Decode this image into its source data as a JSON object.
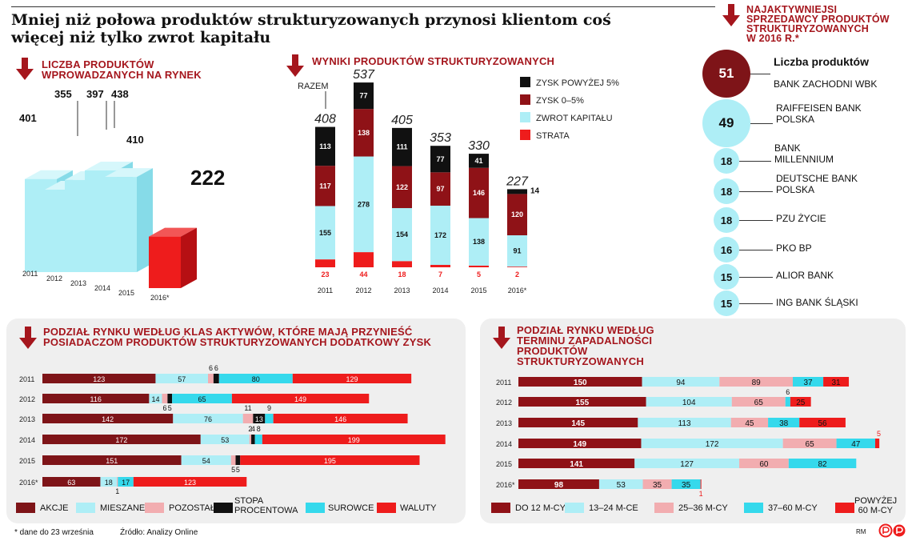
{
  "title": "Mniej niż połowa produktów strukturyzowanych przynosi klientom coś więcej niż tylko zwrot kapitału",
  "colors": {
    "akcje": "#7e1418",
    "mieszane": "#aeeef6",
    "pozostale": "#f2adb0",
    "stopa": "#111111",
    "surowce": "#35d9ec",
    "waluty": "#ee1c1c",
    "do12": "#8f1217",
    "m13_24": "#aeeef6",
    "m25_36": "#f2adb0",
    "m37_60": "#35d9ec",
    "pow60": "#ee1c1c",
    "zysk5": "#111111",
    "zysk05": "#8f1217",
    "zwrot": "#aeeef6",
    "strata": "#ee1c1c",
    "accent": "#a5161d"
  },
  "chart_data": [
    {
      "type": "bar",
      "id": "liczba",
      "title": "LICZBA PRODUKTÓW WPROWADZANYCH NA RYNEK",
      "categories": [
        "2011",
        "2012",
        "2013",
        "2014",
        "2015",
        "2016*"
      ],
      "values": [
        401,
        355,
        397,
        438,
        410,
        222
      ],
      "labels": [
        "401",
        "355",
        "397",
        "438",
        "410",
        "222"
      ]
    },
    {
      "type": "bar",
      "id": "wyniki",
      "title": "WYNIKI PRODUKTÓW STRUKTURYZOWANYCH",
      "annotation": "RAZEM",
      "categories": [
        "2011",
        "2012",
        "2013",
        "2014",
        "2015",
        "2016*"
      ],
      "totals": [
        "408",
        "537",
        "405",
        "353",
        "330",
        "227"
      ],
      "series": [
        {
          "name": "STRATA",
          "values": [
            23,
            44,
            18,
            7,
            5,
            2
          ]
        },
        {
          "name": "ZWROT KAPITAŁU",
          "values": [
            155,
            278,
            154,
            172,
            138,
            91
          ]
        },
        {
          "name": "ZYSK 0–5%",
          "values": [
            117,
            138,
            122,
            97,
            146,
            120
          ]
        },
        {
          "name": "ZYSK POWYŻEJ 5%",
          "values": [
            113,
            77,
            111,
            77,
            41,
            14
          ]
        }
      ],
      "legend": [
        "ZYSK POWYŻEJ 5%",
        "ZYSK 0–5%",
        "ZWROT KAPITAŁU",
        "STRATA"
      ]
    },
    {
      "type": "bar",
      "id": "klasy",
      "title": "PODZIAŁ RYNKU WEDŁUG KLAS AKTYWÓW, KTÓRE MAJĄ PRZYNIEŚĆ POSIADACZOM PRODUKTÓW STRUKTURYZOWANYCH DODATKOWY ZYSK",
      "categories": [
        "2011",
        "2012",
        "2013",
        "2014",
        "2015",
        "2016*"
      ],
      "series": [
        {
          "name": "AKCJE",
          "values": [
            123,
            116,
            142,
            172,
            151,
            63
          ]
        },
        {
          "name": "MIESZANE",
          "values": [
            57,
            14,
            76,
            53,
            54,
            18
          ]
        },
        {
          "name": "POZOSTAŁE",
          "values": [
            6,
            6,
            11,
            2,
            5,
            1
          ]
        },
        {
          "name": "STOPA PROCENTOWA",
          "values": [
            6,
            5,
            13,
            4,
            5,
            0
          ]
        },
        {
          "name": "SUROWCE",
          "values": [
            80,
            65,
            9,
            8,
            0,
            17
          ]
        },
        {
          "name": "WALUTY",
          "values": [
            129,
            149,
            146,
            199,
            195,
            123
          ]
        }
      ]
    },
    {
      "type": "bar",
      "id": "termin",
      "title": "PODZIAŁ RYNKU WEDŁUG TERMINU ZAPADALNOŚCI PRODUKTÓW STRUKTURYZOWANYCH",
      "categories": [
        "2011",
        "2012",
        "2013",
        "2014",
        "2015",
        "2016*"
      ],
      "series": [
        {
          "name": "DO 12 M-CY",
          "values": [
            150,
            155,
            145,
            149,
            141,
            98
          ]
        },
        {
          "name": "13–24 M-CE",
          "values": [
            94,
            104,
            113,
            172,
            127,
            53
          ]
        },
        {
          "name": "25–36 M-CY",
          "values": [
            89,
            65,
            45,
            65,
            60,
            35
          ]
        },
        {
          "name": "37–60 M-CY",
          "values": [
            37,
            6,
            38,
            47,
            82,
            35
          ]
        },
        {
          "name": "POWYŻEJ 60 M-CY",
          "values": [
            31,
            25,
            56,
            5,
            0,
            1
          ]
        }
      ]
    },
    {
      "type": "scatter",
      "id": "sprzedawcy",
      "title": "NAJAKTYWNIEJSI SPRZEDAWCY PRODUKTÓW STRUKTURYZOWANYCH W 2016 R.*",
      "header": "Liczba produktów",
      "banks": [
        {
          "name": "BANK ZACHODNI WBK",
          "value": 51
        },
        {
          "name": "RAIFFEISEN BANK POLSKA",
          "value": 49
        },
        {
          "name": "BANK MILLENNIUM",
          "value": 18
        },
        {
          "name": "DEUTSCHE BANK POLSKA",
          "value": 18
        },
        {
          "name": "PZU ŻYCIE",
          "value": 18
        },
        {
          "name": "PKO BP",
          "value": 16
        },
        {
          "name": "ALIOR BANK",
          "value": 15
        },
        {
          "name": "ING BANK ŚLĄSKI",
          "value": 15
        }
      ]
    }
  ],
  "text": {
    "liczba_title_1": "LICZBA PRODUKTÓW",
    "liczba_title_2": "WPROWADZANYCH NA RYNEK",
    "wyniki_title": "WYNIKI PRODUKTÓW STRUKTURYZOWANYCH",
    "razem": "RAZEM",
    "klasy_title_1": "PODZIAŁ RYNKU WEDŁUG KLAS AKTYWÓW, KTÓRE MAJĄ PRZYNIEŚĆ",
    "klasy_title_2": "POSIADACZOM PRODUKTÓW STRUKTURYZOWANYCH DODATKOWY ZYSK",
    "termin_title_1": "PODZIAŁ RYNKU WEDŁUG",
    "termin_title_2": "TERMINU ZAPADALNOŚCI",
    "termin_title_3": "PRODUKTÓW",
    "termin_title_4": "STRUKTURYZOWANYCH",
    "sprz_title_1": "NAJAKTYWNIEJSI",
    "sprz_title_2": "SPRZEDAWCY PRODUKTÓW",
    "sprz_title_3": "STRUKTURYZOWANYCH",
    "sprz_title_4": "W 2016 R.*",
    "liczba_produktow": "Liczba produktów",
    "leg_akcje": "AKCJE",
    "leg_mieszane": "MIESZANE",
    "leg_pozostale": "POZOSTAŁE",
    "leg_stopa_1": "STOPA",
    "leg_stopa_2": "PROCENTOWA",
    "leg_surowce": "SUROWCE",
    "leg_waluty": "WALUTY",
    "leg_do12": "DO 12 M-CY",
    "leg_1324": "13–24 M-CE",
    "leg_2536": "25–36 M-CY",
    "leg_3760": "37–60 M-CY",
    "leg_pow60_1": "POWYŻEJ",
    "leg_pow60_2": "60 M-CY",
    "footnote": "* dane do 23 września",
    "source": "Źródło: Analizy Online",
    "author": "RM"
  }
}
